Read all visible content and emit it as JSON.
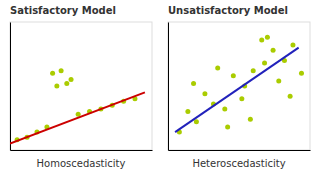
{
  "chart_data": [
    {
      "type": "scatter",
      "title": "Satisfactory Model",
      "xlabel": "Homoscedasticity",
      "xlim": [
        0,
        1
      ],
      "ylim": [
        0,
        1
      ],
      "xticks": [],
      "yticks": [],
      "tick_labels": false,
      "series": [
        {
          "type": "scatter",
          "color": "#aacc00",
          "x": [
            0.05,
            0.12,
            0.19,
            0.26,
            0.33,
            0.4,
            0.48,
            0.56,
            0.64,
            0.72,
            0.8,
            0.88,
            0.3,
            0.36,
            0.43
          ],
          "values": [
            0.08,
            0.1,
            0.14,
            0.18,
            0.5,
            0.52,
            0.28,
            0.3,
            0.32,
            0.35,
            0.38,
            0.4,
            0.6,
            0.62,
            0.55
          ]
        },
        {
          "type": "line",
          "color": "#cc0000",
          "x": [
            0.0,
            0.95
          ],
          "values": [
            0.05,
            0.45
          ]
        }
      ]
    },
    {
      "type": "scatter",
      "title": "Unsatisfactory Model",
      "xlabel": "Heteroscedasticity",
      "xlim": [
        0,
        1
      ],
      "ylim": [
        0,
        1
      ],
      "xticks": [],
      "yticks": [],
      "tick_labels": false,
      "series": [
        {
          "type": "scatter",
          "color": "#aacc00",
          "x": [
            0.08,
            0.14,
            0.2,
            0.26,
            0.32,
            0.4,
            0.46,
            0.54,
            0.6,
            0.68,
            0.74,
            0.82,
            0.88,
            0.94,
            0.18,
            0.35,
            0.52,
            0.66,
            0.78,
            0.42,
            0.58,
            0.7,
            0.86
          ],
          "values": [
            0.14,
            0.3,
            0.22,
            0.44,
            0.36,
            0.32,
            0.58,
            0.5,
            0.62,
            0.68,
            0.78,
            0.7,
            0.82,
            0.6,
            0.52,
            0.64,
            0.4,
            0.86,
            0.54,
            0.18,
            0.24,
            0.88,
            0.42
          ]
        },
        {
          "type": "line",
          "color": "#2222bb",
          "x": [
            0.05,
            0.92
          ],
          "values": [
            0.14,
            0.8
          ]
        }
      ]
    }
  ]
}
